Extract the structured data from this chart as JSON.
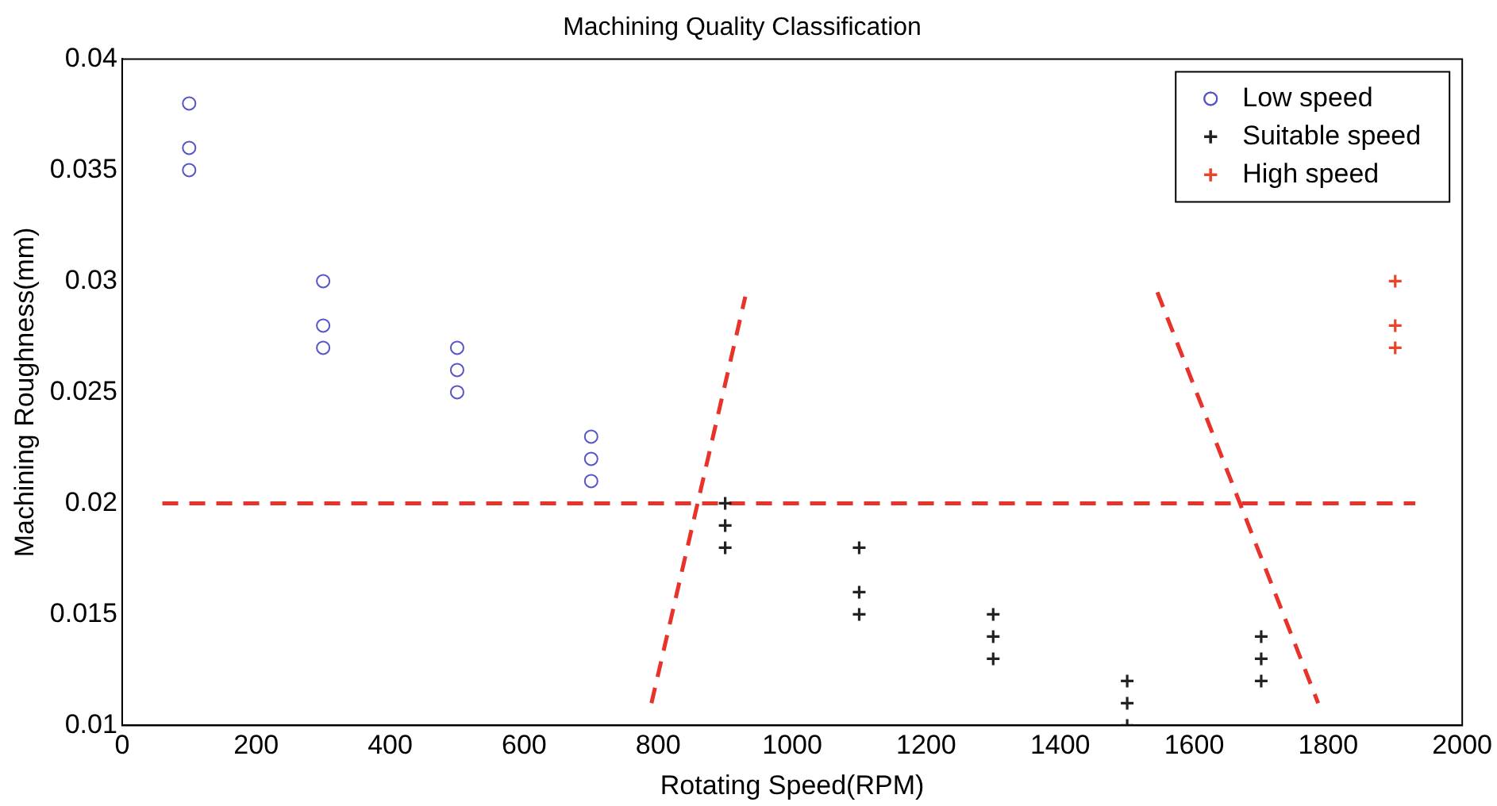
{
  "chart_data": {
    "type": "scatter",
    "title": "Machining Quality Classification",
    "xlabel": "Rotating Speed(RPM)",
    "ylabel": "Machining Roughness(mm)",
    "xlim": [
      0,
      2000
    ],
    "xticks": [
      0,
      200,
      400,
      600,
      800,
      1000,
      1200,
      1400,
      1600,
      1800,
      2000
    ],
    "ylim": [
      0.01,
      0.04
    ],
    "yticks": [
      0.01,
      0.015,
      0.02,
      0.025,
      0.03,
      0.035,
      0.04
    ],
    "grid": false,
    "legend": "top right",
    "series": [
      {
        "name": "Low speed",
        "color": "#5555c8",
        "marker": "circle",
        "x": [
          100,
          100,
          100,
          300,
          300,
          300,
          500,
          500,
          500,
          700,
          700,
          700
        ],
        "values": [
          0.038,
          0.036,
          0.035,
          0.03,
          0.028,
          0.027,
          0.027,
          0.026,
          0.025,
          0.023,
          0.022,
          0.021
        ]
      },
      {
        "name": "Suitable speed",
        "color": "#222222",
        "marker": "cross",
        "x": [
          900,
          900,
          900,
          1100,
          1100,
          1100,
          1300,
          1300,
          1300,
          1500,
          1500,
          1500,
          1700,
          1700,
          1700
        ],
        "values": [
          0.02,
          0.019,
          0.018,
          0.018,
          0.016,
          0.015,
          0.015,
          0.014,
          0.013,
          0.012,
          0.011,
          0.01,
          0.014,
          0.013,
          0.012
        ]
      },
      {
        "name": "High speed",
        "color": "#e8452a",
        "marker": "cross",
        "x": [
          1900,
          1900,
          1900
        ],
        "values": [
          0.03,
          0.028,
          0.027
        ]
      },
      {
        "type": "line",
        "color": "#e8322a",
        "line_style": "dashed",
        "marker": "none",
        "x": [
          60,
          1930
        ],
        "values": [
          0.02,
          0.02
        ]
      },
      {
        "type": "line",
        "color": "#e8322a",
        "line_style": "dashed",
        "marker": "none",
        "x": [
          790,
          930
        ],
        "values": [
          0.011,
          0.0293
        ]
      },
      {
        "type": "line",
        "color": "#e8322a",
        "line_style": "dashed",
        "marker": "none",
        "x": [
          1545,
          1785
        ],
        "values": [
          0.0295,
          0.011
        ]
      }
    ]
  }
}
